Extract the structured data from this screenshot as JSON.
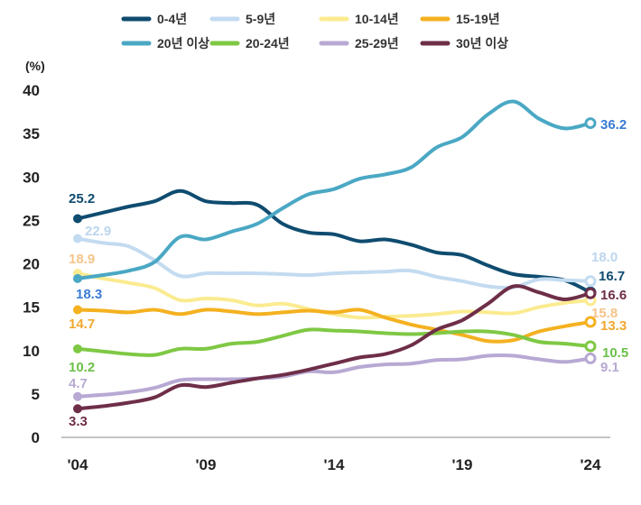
{
  "chart_data": {
    "type": "line",
    "title": "",
    "xlabel": "",
    "ylabel": "(%)",
    "ylim": [
      0,
      40
    ],
    "yticks": [
      "0",
      "5",
      "10",
      "15",
      "20",
      "25",
      "30",
      "35",
      "40"
    ],
    "xlim": [
      2004,
      2024
    ],
    "xticks": [
      {
        "year": 2004,
        "label": "'04"
      },
      {
        "year": 2009,
        "label": "'09"
      },
      {
        "year": 2014,
        "label": "'14"
      },
      {
        "year": 2019,
        "label": "'19"
      },
      {
        "year": 2024,
        "label": "'24"
      }
    ],
    "x": [
      2004,
      2005,
      2006,
      2007,
      2008,
      2009,
      2010,
      2011,
      2012,
      2013,
      2014,
      2015,
      2016,
      2017,
      2018,
      2019,
      2020,
      2021,
      2022,
      2023,
      2024
    ],
    "series": [
      {
        "name": "0-4년",
        "color": "#0f4c70",
        "values": [
          25.2,
          25.9,
          26.6,
          27.2,
          28.4,
          27.2,
          27.0,
          26.8,
          24.6,
          23.6,
          23.4,
          22.6,
          22.8,
          22.2,
          21.3,
          21.0,
          19.8,
          18.8,
          18.5,
          18.1,
          16.7
        ],
        "start_label": "25.2",
        "end_label": "16.7",
        "start_label_color": "#0f4c70",
        "end_label_color": "#0f4c70"
      },
      {
        "name": "5-9년",
        "color": "#c3dbf0",
        "values": [
          22.9,
          22.4,
          22.0,
          20.4,
          18.6,
          18.9,
          18.9,
          18.9,
          18.8,
          18.7,
          18.9,
          19.0,
          19.1,
          19.2,
          18.5,
          18.0,
          17.4,
          17.3,
          18.2,
          18.1,
          18.0
        ],
        "start_label": "22.9",
        "end_label": "18.0",
        "start_label_color": "#bcd6ee",
        "end_label_color": "#bcd6ee"
      },
      {
        "name": "10-14년",
        "color": "#fbeb90",
        "values": [
          18.9,
          18.3,
          17.8,
          17.2,
          15.8,
          16.0,
          15.8,
          15.2,
          15.4,
          14.8,
          14.2,
          13.8,
          13.9,
          14.0,
          14.2,
          14.5,
          14.4,
          14.3,
          15.0,
          15.5,
          15.8
        ],
        "start_label": "18.9",
        "end_label": "15.8",
        "start_label_color": "#f5c48a",
        "end_label_color": "#f5c48a"
      },
      {
        "name": "15-19년",
        "color": "#f4b120",
        "values": [
          14.7,
          14.6,
          14.4,
          14.7,
          14.2,
          14.7,
          14.5,
          14.2,
          14.4,
          14.6,
          14.4,
          14.7,
          13.8,
          13.0,
          12.4,
          11.8,
          11.1,
          11.2,
          12.2,
          12.8,
          13.3
        ],
        "start_label": "14.7",
        "end_label": "13.3",
        "start_label_color": "#f0a830",
        "end_label_color": "#f0a830"
      },
      {
        "name": "20년 이상",
        "color": "#4aa8c4",
        "values": [
          18.3,
          18.7,
          19.2,
          20.2,
          23.1,
          22.8,
          23.7,
          24.6,
          26.4,
          28.0,
          28.6,
          29.8,
          30.3,
          31.1,
          33.4,
          34.6,
          37.2,
          38.7,
          36.7,
          35.6,
          36.2
        ],
        "start_label": "18.3",
        "end_label": "36.2",
        "start_label_color": "#3a7bd5",
        "end_label_color": "#3a7bd5"
      },
      {
        "name": "20-24년",
        "color": "#7fc844",
        "values": [
          10.2,
          9.9,
          9.6,
          9.5,
          10.2,
          10.2,
          10.8,
          11.0,
          11.7,
          12.4,
          12.3,
          12.2,
          12.0,
          11.9,
          12.0,
          12.2,
          12.2,
          11.8,
          11.0,
          10.8,
          10.5
        ],
        "start_label": "10.2",
        "end_label": "10.5",
        "start_label_color": "#6cc04a",
        "end_label_color": "#6cc04a"
      },
      {
        "name": "25-29년",
        "color": "#b7a9d3",
        "values": [
          4.7,
          4.9,
          5.2,
          5.7,
          6.6,
          6.7,
          6.7,
          6.8,
          7.0,
          7.6,
          7.5,
          8.1,
          8.4,
          8.5,
          8.9,
          9.0,
          9.4,
          9.4,
          9.0,
          8.7,
          9.1
        ],
        "start_label": "4.7",
        "end_label": "9.1",
        "start_label_color": "#b7a9d3",
        "end_label_color": "#b7a9d3"
      },
      {
        "name": "30년 이상",
        "color": "#6e2e48",
        "values": [
          3.3,
          3.6,
          4.0,
          4.6,
          6.0,
          5.8,
          6.3,
          6.8,
          7.2,
          7.8,
          8.5,
          9.2,
          9.6,
          10.6,
          12.4,
          13.5,
          15.4,
          17.4,
          16.7,
          15.9,
          16.6
        ],
        "start_label": "3.3",
        "end_label": "16.6",
        "start_label_color": "#6e2e48",
        "end_label_color": "#6e2e48"
      }
    ]
  }
}
